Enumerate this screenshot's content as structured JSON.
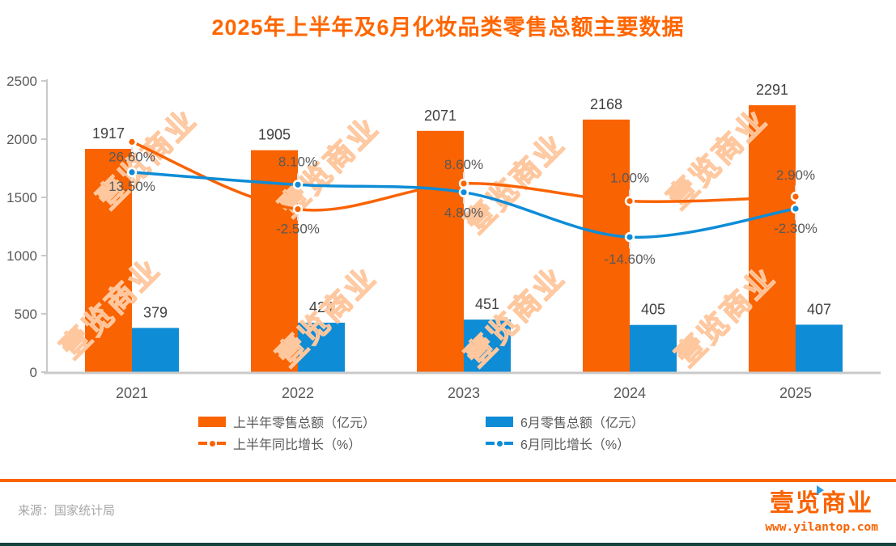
{
  "title": "2025年上半年及6月化妆品类零售总额主要数据",
  "watermark": "壹览商业",
  "colors": {
    "orange": "#F96301",
    "blue": "#0E8CD6",
    "title_orange": "#FF6600",
    "watermark_orange": "#FFC79E",
    "divider_orange": "#FA6400",
    "bottom_teal": "#16423C",
    "label_gray": "#595959",
    "axis_gray": "#C9C9C9"
  },
  "chart_data": {
    "type": "bar+line combo",
    "categories": [
      "2021",
      "2022",
      "2023",
      "2024",
      "2025"
    ],
    "series": [
      {
        "name": "上半年零售总额（亿元）",
        "type": "bar",
        "color": "#F96301",
        "values": [
          1917,
          1905,
          2071,
          2168,
          2291
        ],
        "labels": [
          "1917",
          "1905",
          "2071",
          "2168",
          "2291"
        ]
      },
      {
        "name": "6月零售总额（亿元）",
        "type": "bar",
        "color": "#0E8CD6",
        "values": [
          379,
          424,
          451,
          405,
          407
        ],
        "labels": [
          "379",
          "424",
          "451",
          "405",
          "407"
        ]
      },
      {
        "name": "上半年同比增长（%）",
        "type": "line",
        "color": "#F96301",
        "values": [
          26.6,
          -2.5,
          8.6,
          1.0,
          2.9
        ],
        "labels": [
          "26.60%",
          "-2.50%",
          "8.60%",
          "1.00%",
          "2.90%"
        ]
      },
      {
        "name": "6月同比增长（%）",
        "type": "line",
        "color": "#0E8CD6",
        "values": [
          13.5,
          8.1,
          4.8,
          -14.6,
          -2.3
        ],
        "labels": [
          "13.50%",
          "8.10%",
          "4.80%",
          "-14.60%",
          "-2.30%"
        ]
      }
    ],
    "y_axis": {
      "min": 0,
      "max": 2500,
      "ticks": [
        0,
        500,
        1000,
        1500,
        2000,
        2500
      ]
    },
    "y2_axis": {
      "min": -73,
      "max": 53
    },
    "grid": "off",
    "legend_position": "bottom"
  },
  "footer": {
    "source": "来源：国家统计局",
    "logo_text": "壹览商业",
    "logo_url": "www.yilantop.com"
  }
}
